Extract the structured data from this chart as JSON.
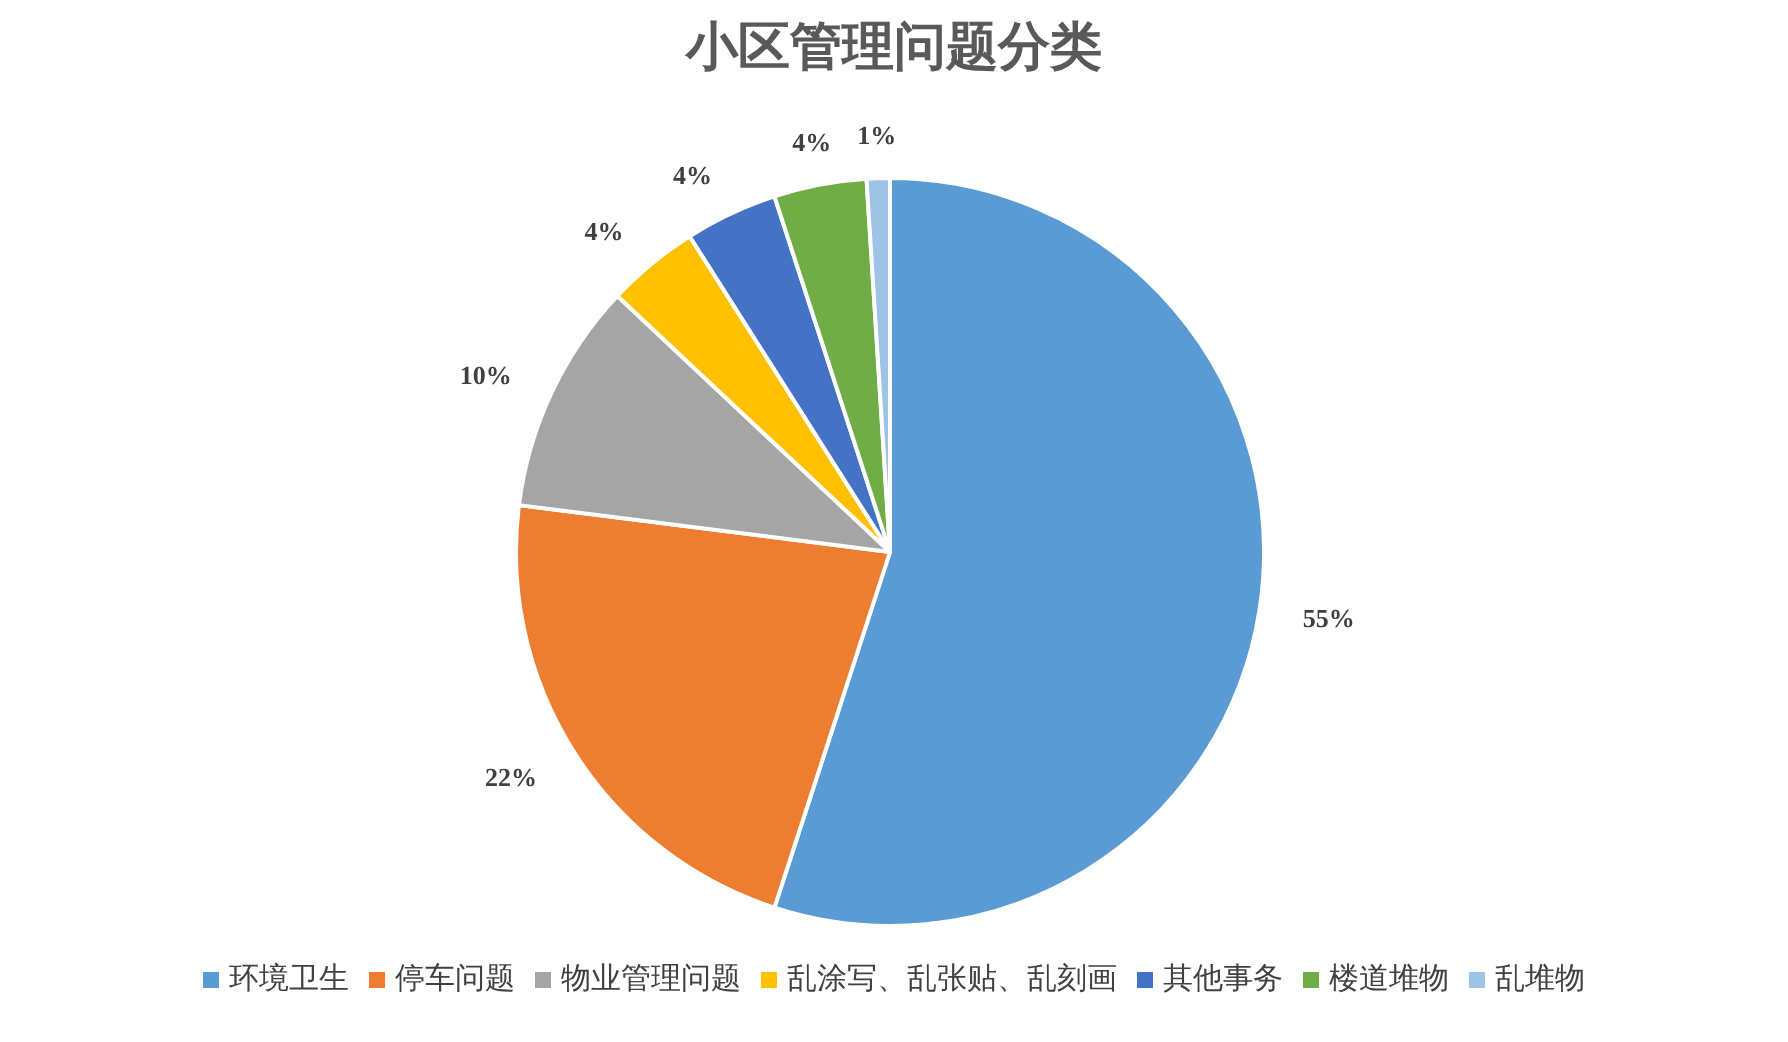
{
  "chart_data": {
    "type": "pie",
    "title": "小区管理问题分类",
    "categories": [
      "环境卫生",
      "停车问题",
      "物业管理问题",
      "乱涂写、乱张贴、乱刻画",
      "其他事务",
      "楼道堆物",
      "乱堆物"
    ],
    "values": [
      55,
      22,
      10,
      4,
      4,
      4,
      1
    ],
    "value_labels": [
      "55%",
      "22%",
      "10%",
      "4%",
      "4%",
      "4%",
      "1%"
    ],
    "colors": [
      "#5b9bd5",
      "#ed7d31",
      "#a5a5a5",
      "#ffc000",
      "#4472c4",
      "#70ad47",
      "#9dc3e6"
    ],
    "legend": "bottom"
  }
}
